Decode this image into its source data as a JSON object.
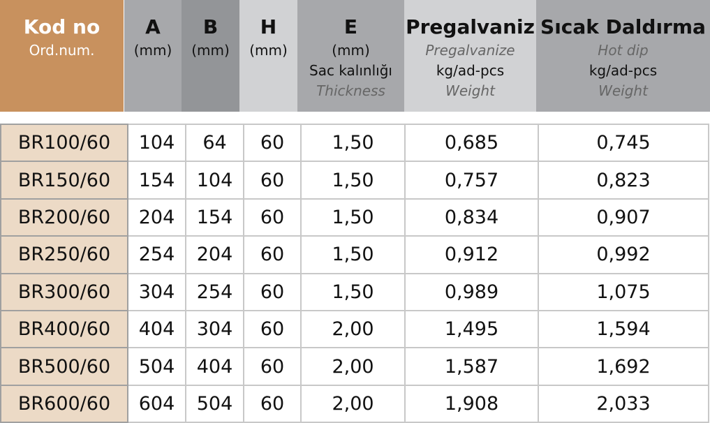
{
  "header": {
    "code": {
      "title": "Kod no",
      "sub": "Ord.num."
    },
    "a": {
      "title": "A",
      "unit": "(mm)"
    },
    "b": {
      "title": "B",
      "unit": "(mm)"
    },
    "h": {
      "title": "H",
      "unit": "(mm)"
    },
    "e": {
      "title": "E",
      "unit": "(mm)",
      "sub": "Sac kalınlığı",
      "en": "Thickness"
    },
    "pre": {
      "title": "Pregalvaniz",
      "en": "Pregalvanize",
      "unit": "kg/ad-pcs",
      "sub": "Weight"
    },
    "hot": {
      "title": "Sıcak Daldırma",
      "en": "Hot dip",
      "unit": "kg/ad-pcs",
      "sub": "Weight"
    }
  },
  "rows": [
    [
      "BR100/60",
      "104",
      "64",
      "60",
      "1,50",
      "0,685",
      "0,745"
    ],
    [
      "BR150/60",
      "154",
      "104",
      "60",
      "1,50",
      "0,757",
      "0,823"
    ],
    [
      "BR200/60",
      "204",
      "154",
      "60",
      "1,50",
      "0,834",
      "0,907"
    ],
    [
      "BR250/60",
      "254",
      "204",
      "60",
      "1,50",
      "0,912",
      "0,992"
    ],
    [
      "BR300/60",
      "304",
      "254",
      "60",
      "1,50",
      "0,989",
      "1,075"
    ],
    [
      "BR400/60",
      "404",
      "304",
      "60",
      "2,00",
      "1,495",
      "1,594"
    ],
    [
      "BR500/60",
      "504",
      "404",
      "60",
      "2,00",
      "1,587",
      "1,692"
    ],
    [
      "BR600/60",
      "604",
      "504",
      "60",
      "2,00",
      "1,908",
      "2,033"
    ]
  ]
}
